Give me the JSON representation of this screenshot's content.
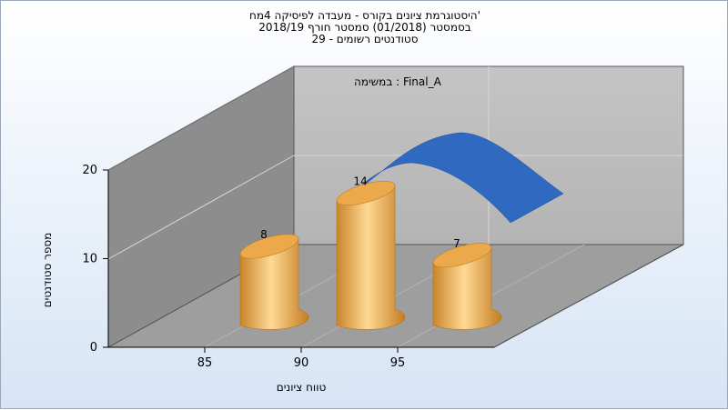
{
  "header": {
    "title_line1": "היסטוגרמת ציונים בקורס - מעבדה לפיסיקה 4מח'",
    "title_line2": "בסמסטר  (01/2018)  סמסטר חורף 2018/19",
    "title_line3": "סטודנטים רשומים - 29"
  },
  "chart_data": {
    "type": "bar",
    "subtitle": "במשימה : Final_A",
    "xlabel": "טווח ציונים",
    "ylabel": "מספר סטודנטים",
    "x_ticks": [
      "85",
      "90",
      "95"
    ],
    "y_ticks": [
      "0",
      "10",
      "20"
    ],
    "ylim": [
      0,
      20
    ],
    "categories": [
      "87.5",
      "92.5",
      "97.5"
    ],
    "values": [
      8,
      14,
      7
    ],
    "value_labels": [
      "8",
      "14",
      "7"
    ],
    "bar_color": "#e7a94a",
    "curve_color": "#2f6ac0",
    "grid": true
  }
}
